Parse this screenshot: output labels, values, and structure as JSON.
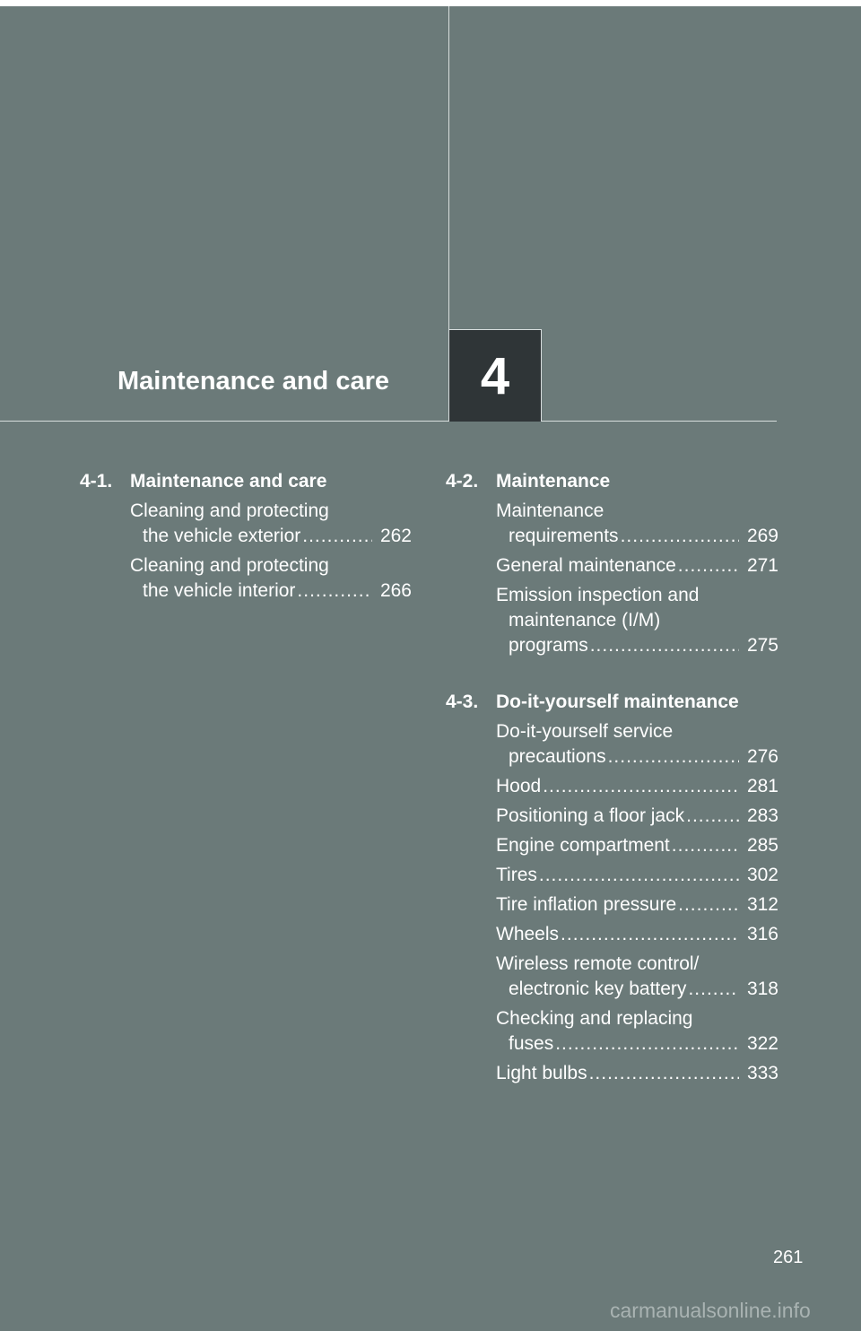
{
  "chapter": {
    "title": "Maintenance and care",
    "number": "4"
  },
  "sections": [
    {
      "number": "4-1.",
      "title": "Maintenance and care",
      "entries": [
        {
          "lines": [
            "Cleaning and protecting",
            "the vehicle exterior"
          ],
          "page": "262"
        },
        {
          "lines": [
            "Cleaning and protecting",
            "the vehicle interior"
          ],
          "page": "266"
        }
      ]
    },
    {
      "number": "4-2.",
      "title": "Maintenance",
      "entries": [
        {
          "lines": [
            "Maintenance",
            "requirements"
          ],
          "page": "269"
        },
        {
          "lines": [
            "General maintenance"
          ],
          "page": "271"
        },
        {
          "lines": [
            "Emission inspection and",
            "maintenance (I/M)",
            "programs"
          ],
          "page": "275"
        }
      ]
    },
    {
      "number": "4-3.",
      "title": "Do-it-yourself maintenance",
      "entries": [
        {
          "lines": [
            "Do-it-yourself service",
            "precautions"
          ],
          "page": "276"
        },
        {
          "lines": [
            "Hood"
          ],
          "page": "281"
        },
        {
          "lines": [
            "Positioning a floor jack"
          ],
          "page": "283"
        },
        {
          "lines": [
            "Engine compartment"
          ],
          "page": "285"
        },
        {
          "lines": [
            "Tires"
          ],
          "page": "302"
        },
        {
          "lines": [
            "Tire inflation pressure"
          ],
          "page": "312"
        },
        {
          "lines": [
            "Wheels"
          ],
          "page": "316"
        },
        {
          "lines": [
            "Wireless remote control/",
            "electronic key battery"
          ],
          "page": "318"
        },
        {
          "lines": [
            "Checking and replacing",
            "fuses"
          ],
          "page": "322"
        },
        {
          "lines": [
            "Light bulbs"
          ],
          "page": "333"
        }
      ]
    }
  ],
  "folio": "261",
  "watermark": "carmanualsonline.info"
}
